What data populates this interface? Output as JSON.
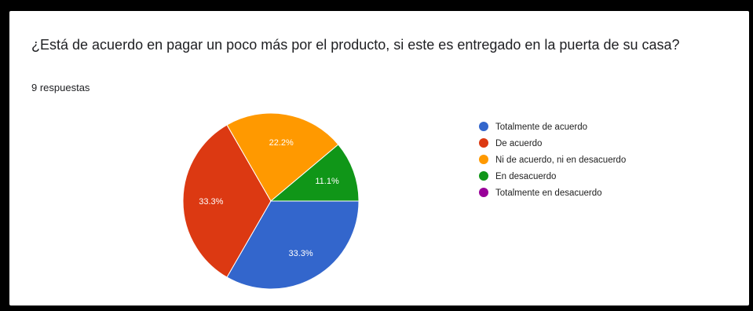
{
  "question": "¿Está de acuerdo en pagar un poco más por el producto, si este es entregado en la puerta de su casa?",
  "responses": "9 respuestas",
  "chart_data": {
    "type": "pie",
    "title": "¿Está de acuerdo en pagar un poco más por el producto, si este es entregado en la puerta de su casa?",
    "legend_position": "right",
    "categories": [
      "Totalmente de acuerdo",
      "De acuerdo",
      "Ni de acuerdo, ni en desacuerdo",
      "En desacuerdo",
      "Totalmente en desacuerdo"
    ],
    "values": [
      33.3,
      33.3,
      22.2,
      11.1,
      0
    ],
    "labels": [
      "33.3%",
      "33.3%",
      "22.2%",
      "11.1%",
      ""
    ],
    "colors": [
      "#3366cc",
      "#dc3912",
      "#ff9900",
      "#109618",
      "#990099"
    ]
  }
}
